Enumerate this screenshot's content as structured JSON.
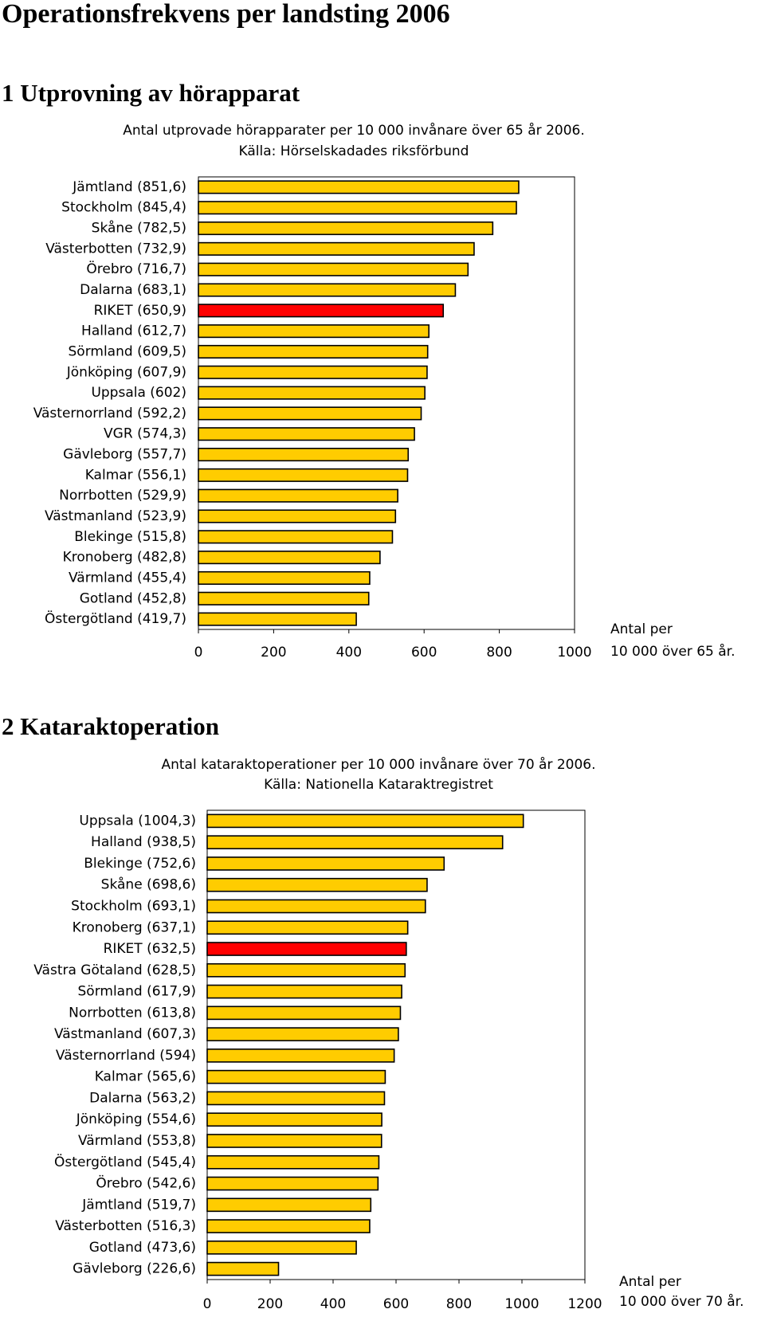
{
  "title": "Operationsfrekvens per landsting 2006",
  "headings": [
    "1 Utprovning av hörapparat",
    "2 Kataraktoperation"
  ],
  "chart_data": [
    {
      "type": "bar",
      "orientation": "horizontal",
      "title": [
        "Antal utprovade hörapparater per 10 000 invånare över 65 år 2006.",
        "Källa: Hörselskadades riksförbund"
      ],
      "xlabel": [
        "Antal per",
        "10 000 över 65 år."
      ],
      "categories": [
        "Jämtland (851,6)",
        "Stockholm (845,4)",
        "Skåne (782,5)",
        "Västerbotten (732,9)",
        "Örebro (716,7)",
        "Dalarna (683,1)",
        "RIKET (650,9)",
        "Halland (612,7)",
        "Sörmland (609,5)",
        "Jönköping (607,9)",
        "Uppsala (602)",
        "Västernorrland (592,2)",
        "VGR (574,3)",
        "Gävleborg (557,7)",
        "Kalmar (556,1)",
        "Norrbotten (529,9)",
        "Västmanland (523,9)",
        "Blekinge (515,8)",
        "Kronoberg (482,8)",
        "Värmland (455,4)",
        "Gotland (452,8)",
        "Östergötland (419,7)"
      ],
      "values": [
        851.6,
        845.4,
        782.5,
        732.9,
        716.7,
        683.1,
        650.9,
        612.7,
        609.5,
        607.9,
        602,
        592.2,
        574.3,
        557.7,
        556.1,
        529.9,
        523.9,
        515.8,
        482.8,
        455.4,
        452.8,
        419.7
      ],
      "colors": [
        "#ffcc00",
        "#ffcc00",
        "#ffcc00",
        "#ffcc00",
        "#ffcc00",
        "#ffcc00",
        "#ff0000",
        "#ffcc00",
        "#ffcc00",
        "#ffcc00",
        "#ffcc00",
        "#ffcc00",
        "#ffcc00",
        "#ffcc00",
        "#ffcc00",
        "#ffcc00",
        "#ffcc00",
        "#ffcc00",
        "#ffcc00",
        "#ffcc00",
        "#ffcc00",
        "#ffcc00"
      ],
      "xlim": [
        0,
        1000
      ],
      "xticks": [
        0,
        200,
        400,
        600,
        800,
        1000
      ],
      "grid": false
    },
    {
      "type": "bar",
      "orientation": "horizontal",
      "title": [
        "Antal kataraktoperationer per 10 000 invånare över 70 år 2006.",
        "Källa: Nationella Kataraktregistret"
      ],
      "xlabel": [
        "Antal per",
        "10 000 över 70 år."
      ],
      "categories": [
        "Uppsala (1004,3)",
        "Halland (938,5)",
        "Blekinge (752,6)",
        "Skåne (698,6)",
        "Stockholm (693,1)",
        "Kronoberg (637,1)",
        "RIKET (632,5)",
        "Västra Götaland (628,5)",
        "Sörmland (617,9)",
        "Norrbotten (613,8)",
        "Västmanland (607,3)",
        "Västernorrland (594)",
        "Kalmar (565,6)",
        "Dalarna (563,2)",
        "Jönköping (554,6)",
        "Värmland (553,8)",
        "Östergötland (545,4)",
        "Örebro (542,6)",
        "Jämtland (519,7)",
        "Västerbotten (516,3)",
        "Gotland (473,6)",
        "Gävleborg (226,6)"
      ],
      "values": [
        1004.3,
        938.5,
        752.6,
        698.6,
        693.1,
        637.1,
        632.5,
        628.5,
        617.9,
        613.8,
        607.3,
        594,
        565.6,
        563.2,
        554.6,
        553.8,
        545.4,
        542.6,
        519.7,
        516.3,
        473.6,
        226.6
      ],
      "colors": [
        "#ffcc00",
        "#ffcc00",
        "#ffcc00",
        "#ffcc00",
        "#ffcc00",
        "#ffcc00",
        "#ff0000",
        "#ffcc00",
        "#ffcc00",
        "#ffcc00",
        "#ffcc00",
        "#ffcc00",
        "#ffcc00",
        "#ffcc00",
        "#ffcc00",
        "#ffcc00",
        "#ffcc00",
        "#ffcc00",
        "#ffcc00",
        "#ffcc00",
        "#ffcc00",
        "#ffcc00"
      ],
      "xlim": [
        0,
        1200
      ],
      "xticks": [
        0,
        200,
        400,
        600,
        800,
        1000,
        1200
      ],
      "grid": false
    }
  ]
}
